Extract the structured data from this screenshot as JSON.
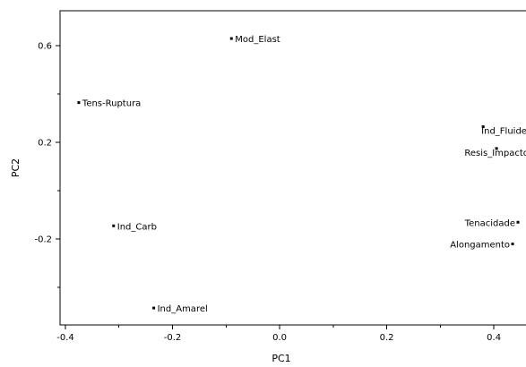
{
  "chart_data": {
    "type": "scatter",
    "xlabel": "PC1",
    "ylabel": "PC2",
    "xlim": [
      -0.41,
      0.46
    ],
    "ylim": [
      -0.555,
      0.745
    ],
    "xticks": [
      -0.4,
      -0.2,
      0.0,
      0.2,
      0.4
    ],
    "xtick_labels": [
      "-0.4",
      "-0.2",
      "0.0",
      "0.2",
      "0.4"
    ],
    "yticks": [
      0.6,
      0.2,
      -0.2
    ],
    "ytick_labels": [
      "0.6",
      "0.2",
      "-0.2"
    ],
    "grid": false,
    "points": [
      {
        "label": "Mod_Elast",
        "x": -0.09,
        "y": 0.63,
        "label_side": "right"
      },
      {
        "label": "Tens-Ruptura",
        "x": -0.375,
        "y": 0.365,
        "label_side": "right"
      },
      {
        "label": "Ind_Carb",
        "x": -0.31,
        "y": -0.145,
        "label_side": "right"
      },
      {
        "label": "Ind_Amarel",
        "x": -0.235,
        "y": -0.485,
        "label_side": "right"
      },
      {
        "label": "Ind_Fluidez",
        "x": 0.38,
        "y": 0.265,
        "label_side": "below"
      },
      {
        "label": "Resis_Impacto",
        "x": 0.405,
        "y": 0.175,
        "label_side": "center"
      },
      {
        "label": "Tenacidade",
        "x": 0.445,
        "y": -0.13,
        "label_side": "left"
      },
      {
        "label": "Alongamento",
        "x": 0.435,
        "y": -0.22,
        "label_side": "left"
      }
    ]
  }
}
